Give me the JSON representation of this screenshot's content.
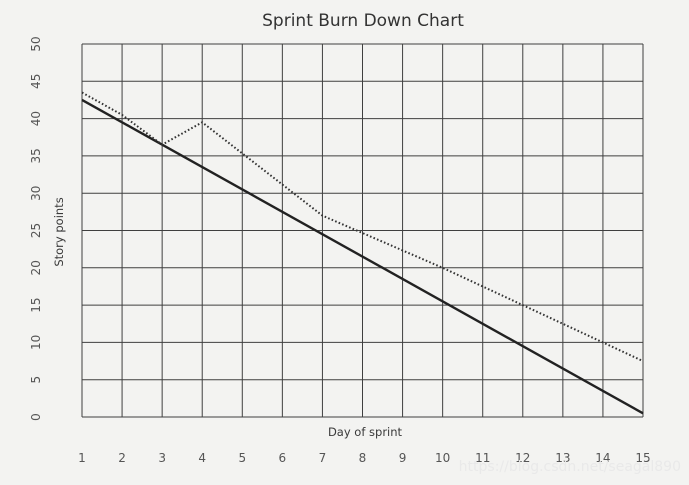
{
  "chart_data": {
    "type": "line",
    "title": "Sprint Burn Down Chart",
    "xlabel": "Day of sprint",
    "ylabel": "Story points",
    "x": [
      1,
      2,
      3,
      4,
      5,
      6,
      7,
      8,
      9,
      10,
      11,
      12,
      13,
      14,
      15
    ],
    "y_ticks": [
      0,
      5,
      10,
      15,
      20,
      25,
      30,
      35,
      40,
      45,
      50
    ],
    "ylim": [
      0,
      50
    ],
    "grid": true,
    "legend": "none",
    "series": [
      {
        "style": "solid",
        "color": "#222222",
        "points": [
          [
            1,
            42.5
          ],
          [
            15,
            0.5
          ]
        ]
      },
      {
        "style": "dotted",
        "color": "#333333",
        "points": [
          [
            1,
            43.5
          ],
          [
            2,
            40.5
          ],
          [
            3,
            36.5
          ],
          [
            4,
            39.5
          ],
          [
            7,
            27
          ],
          [
            10,
            20
          ],
          [
            15,
            7.5
          ]
        ]
      }
    ]
  },
  "watermark": "https://blog.csdn.net/seagal890"
}
